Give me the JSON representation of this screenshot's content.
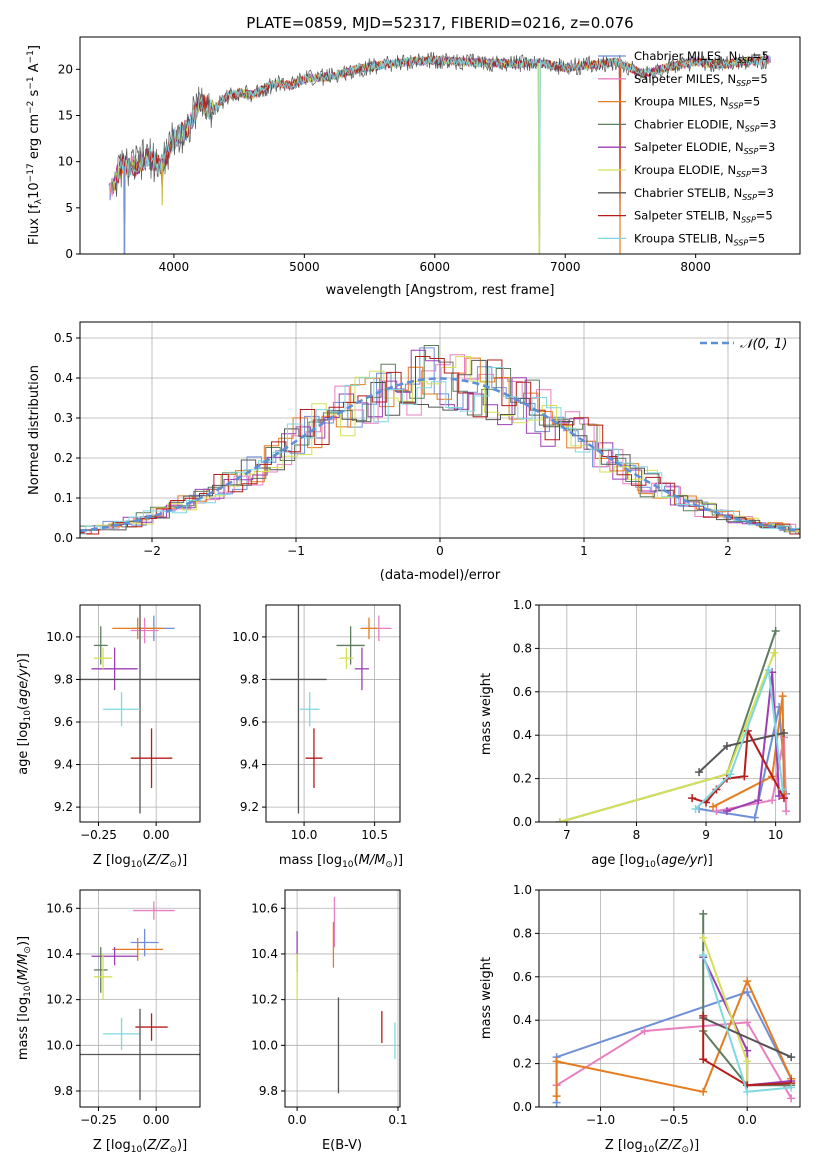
{
  "chart_data": [
    {
      "type": "line",
      "title": "PLATE=0859, MJD=52317, FIBERID=0216, z=0.076",
      "xlabel": "wavelength [Angstrom, rest frame]",
      "ylabel": "Flux [f_λ 10^-17 erg cm^-2 s^-1 A^-1]",
      "xlim": [
        3280,
        8800
      ],
      "ylim": [
        0,
        23.5
      ],
      "xticks": [
        "4000",
        "5000",
        "6000",
        "7000",
        "8000"
      ],
      "yticks": [
        "0",
        "5",
        "10",
        "15",
        "20"
      ],
      "legend_position": "upper-right",
      "series": [
        {
          "name": "Chabrier MILES, N_SSP=5",
          "color": "#6f8fd8"
        },
        {
          "name": "Salpeter MILES, N_SSP=5",
          "color": "#e87fc1"
        },
        {
          "name": "Kroupa MILES, N_SSP=5",
          "color": "#e57c20"
        },
        {
          "name": "Chabrier ELODIE, N_SSP=3",
          "color": "#5e7d5e"
        },
        {
          "name": "Salpeter ELODIE, N_SSP=3",
          "color": "#9b3fb5"
        },
        {
          "name": "Kroupa ELODIE, N_SSP=3",
          "color": "#d4e157"
        },
        {
          "name": "Chabrier STELIB, N_SSP=3",
          "color": "#555555"
        },
        {
          "name": "Salpeter STELIB, N_SSP=5",
          "color": "#b71c1c"
        },
        {
          "name": "Kroupa STELIB, N_SSP=5",
          "color": "#7fd8e0"
        }
      ],
      "continuum": {
        "x": [
          3500,
          3600,
          3700,
          3800,
          3900,
          4000,
          4100,
          4200,
          4300,
          4400,
          4500,
          4600,
          4700,
          4800,
          4900,
          5000,
          5200,
          5400,
          5600,
          5800,
          6000,
          6200,
          6400,
          6600,
          6800,
          7000,
          7200,
          7400,
          7600,
          7800,
          8000,
          8200,
          8400,
          8600
        ],
        "y": [
          6.5,
          9.5,
          9.5,
          10.5,
          9.5,
          12.5,
          13.5,
          16.5,
          15.5,
          17,
          17.5,
          17.2,
          18,
          18.5,
          18.2,
          19,
          19.2,
          20,
          20.5,
          20.8,
          21,
          20.8,
          20.7,
          20.6,
          20.7,
          20.2,
          20.5,
          20.8,
          19.5,
          20.3,
          20.8,
          20.5,
          20.9,
          21
        ]
      },
      "drops": [
        {
          "x": 3620,
          "y": 0
        },
        {
          "x": 3910,
          "y": 5.3
        },
        {
          "x": 6800,
          "y": 0
        },
        {
          "x": 7420,
          "y": 0
        }
      ]
    },
    {
      "type": "line",
      "title": "",
      "xlabel": "(data-model)/error",
      "ylabel": "Normed distribution",
      "xlim": [
        -2.5,
        2.5
      ],
      "ylim": [
        0,
        0.54
      ],
      "xticks": [
        "−2",
        "−1",
        "0",
        "1",
        "2"
      ],
      "yticks": [
        "0.0",
        "0.1",
        "0.2",
        "0.3",
        "0.4",
        "0.5"
      ],
      "legend_position": "upper-right",
      "reference_label": "N(0,1)",
      "reference_color": "#5b8fd6",
      "bin_width": 0.1,
      "histogram_colors": [
        "#6f8fd8",
        "#e87fc1",
        "#e57c20",
        "#5e7d5e",
        "#9b3fb5",
        "#d4e157",
        "#555555",
        "#b71c1c",
        "#7fd8e0"
      ]
    },
    {
      "type": "scatter",
      "xlabel": "Z [log10(Z/Z⊙)]",
      "ylabel": "age  [log10(age/yr)]",
      "xlim": [
        -0.33,
        0.19
      ],
      "ylim": [
        9.13,
        10.15
      ],
      "xticks": [
        "−0.25",
        "0.00"
      ],
      "yticks": [
        "9.2",
        "9.4",
        "9.6",
        "9.8",
        "10.0"
      ],
      "points": [
        {
          "x": -0.01,
          "y": 10.04,
          "xe": 0.09,
          "ye": 0.06,
          "color": "#6f8fd8"
        },
        {
          "x": -0.08,
          "y": 10.04,
          "xe": 0.11,
          "ye": 0.05,
          "color": "#e57c20"
        },
        {
          "x": -0.05,
          "y": 10.03,
          "xe": 0.06,
          "ye": 0.06,
          "color": "#e87fc1"
        },
        {
          "x": -0.24,
          "y": 9.96,
          "xe": 0.03,
          "ye": 0.09,
          "color": "#5e7d5e"
        },
        {
          "x": -0.18,
          "y": 9.85,
          "xe": 0.1,
          "ye": 0.1,
          "color": "#9b3fb5"
        },
        {
          "x": -0.23,
          "y": 9.9,
          "xe": 0.04,
          "ye": 0.05,
          "color": "#d4e157"
        },
        {
          "x": -0.07,
          "y": 9.8,
          "xe": 0.26,
          "ye": 0.63,
          "color": "#555555"
        },
        {
          "x": -0.15,
          "y": 9.66,
          "xe": 0.08,
          "ye": 0.08,
          "color": "#7fd8e0"
        },
        {
          "x": -0.02,
          "y": 9.43,
          "xe": 0.09,
          "ye": 0.14,
          "color": "#b71c1c"
        }
      ]
    },
    {
      "type": "scatter",
      "xlabel": "mass [log10(M/M⊙)]",
      "ylabel": "",
      "xlim": [
        9.73,
        10.68
      ],
      "ylim": [
        9.13,
        10.15
      ],
      "xticks": [
        "10.0",
        "10.5"
      ],
      "yticks": [
        "9.2",
        "9.4",
        "9.6",
        "9.8",
        "10.0"
      ],
      "points": [
        {
          "x": 10.53,
          "y": 10.04,
          "xe": 0.09,
          "ye": 0.06,
          "color": "#e87fc1"
        },
        {
          "x": 10.46,
          "y": 10.04,
          "xe": 0.06,
          "ye": 0.05,
          "color": "#e57c20"
        },
        {
          "x": 10.33,
          "y": 9.96,
          "xe": 0.1,
          "ye": 0.09,
          "color": "#5e7d5e"
        },
        {
          "x": 10.41,
          "y": 9.85,
          "xe": 0.05,
          "ye": 0.1,
          "color": "#9b3fb5"
        },
        {
          "x": 10.3,
          "y": 9.9,
          "xe": 0.05,
          "ye": 0.05,
          "color": "#d4e157"
        },
        {
          "x": 9.96,
          "y": 9.8,
          "xe": 0.2,
          "ye": 0.63,
          "color": "#555555"
        },
        {
          "x": 10.04,
          "y": 9.66,
          "xe": 0.07,
          "ye": 0.08,
          "color": "#7fd8e0"
        },
        {
          "x": 10.07,
          "y": 9.43,
          "xe": 0.06,
          "ye": 0.14,
          "color": "#b71c1c"
        }
      ]
    },
    {
      "type": "line",
      "xlabel": "age  [log10(age/yr)]",
      "ylabel": "mass weight",
      "xlim": [
        6.6,
        10.35
      ],
      "ylim": [
        0,
        1
      ],
      "xticks": [
        "7",
        "8",
        "9",
        "10"
      ],
      "yticks": [
        "0.0",
        "0.2",
        "0.4",
        "0.6",
        "0.8",
        "1.0"
      ],
      "series": [
        {
          "color": "#6f8fd8",
          "points": [
            [
              8.9,
              0.06
            ],
            [
              9.7,
              0.02
            ],
            [
              10.05,
              0.53
            ],
            [
              10.15,
              0.13
            ]
          ]
        },
        {
          "color": "#e87fc1",
          "points": [
            [
              9.15,
              0.05
            ],
            [
              9.95,
              0.1
            ],
            [
              10.12,
              0.39
            ],
            [
              10.15,
              0.05
            ]
          ]
        },
        {
          "color": "#e57c20",
          "points": [
            [
              9.1,
              0.07
            ],
            [
              9.95,
              0.21
            ],
            [
              10.1,
              0.58
            ],
            [
              10.12,
              0.13
            ]
          ]
        },
        {
          "color": "#5e7d5e",
          "points": [
            [
              6.9,
              0
            ],
            [
              9.3,
              0.22
            ],
            [
              10,
              0.88
            ]
          ]
        },
        {
          "color": "#9b3fb5",
          "points": [
            [
              9.3,
              0.05
            ],
            [
              9.75,
              0.1
            ],
            [
              9.95,
              0.69
            ],
            [
              10.05,
              0.12
            ]
          ]
        },
        {
          "color": "#d4e157",
          "points": [
            [
              6.9,
              0
            ],
            [
              9.3,
              0.22
            ],
            [
              9.98,
              0.78
            ]
          ]
        },
        {
          "color": "#555555",
          "points": [
            [
              8.9,
              0.23
            ],
            [
              9.3,
              0.35
            ],
            [
              10.12,
              0.41
            ]
          ]
        },
        {
          "color": "#b71c1c",
          "points": [
            [
              8.8,
              0.11
            ],
            [
              9.0,
              0.09
            ],
            [
              9.15,
              0.15
            ],
            [
              9.3,
              0.2
            ],
            [
              9.55,
              0.21
            ],
            [
              9.6,
              0.42
            ],
            [
              10.12,
              0.11
            ]
          ]
        },
        {
          "color": "#7fd8e0",
          "points": [
            [
              8.85,
              0.06
            ],
            [
              9.35,
              0.22
            ],
            [
              9.9,
              0.7
            ],
            [
              10.1,
              0.15
            ]
          ]
        }
      ]
    },
    {
      "type": "scatter",
      "xlabel": "Z [log10(Z/Z⊙)]",
      "ylabel": "mass [log10(M/M⊙)]",
      "xlim": [
        -0.33,
        0.19
      ],
      "ylim": [
        9.73,
        10.68
      ],
      "xticks": [
        "−0.25",
        "0.00"
      ],
      "yticks": [
        "9.8",
        "10.0",
        "10.2",
        "10.4",
        "10.6"
      ],
      "points": [
        {
          "x": -0.01,
          "y": 10.59,
          "xe": 0.09,
          "ye": 0.04,
          "color": "#e87fc1"
        },
        {
          "x": -0.05,
          "y": 10.45,
          "xe": 0.06,
          "ye": 0.06,
          "color": "#6f8fd8"
        },
        {
          "x": -0.08,
          "y": 10.42,
          "xe": 0.11,
          "ye": 0.05,
          "color": "#e57c20"
        },
        {
          "x": -0.18,
          "y": 10.39,
          "xe": 0.1,
          "ye": 0.04,
          "color": "#9b3fb5"
        },
        {
          "x": -0.24,
          "y": 10.33,
          "xe": 0.03,
          "ye": 0.1,
          "color": "#5e7d5e"
        },
        {
          "x": -0.23,
          "y": 10.3,
          "xe": 0.04,
          "ye": 0.1,
          "color": "#d4e157"
        },
        {
          "x": -0.02,
          "y": 10.08,
          "xe": 0.07,
          "ye": 0.06,
          "color": "#b71c1c"
        },
        {
          "x": -0.15,
          "y": 10.05,
          "xe": 0.08,
          "ye": 0.07,
          "color": "#7fd8e0"
        },
        {
          "x": -0.07,
          "y": 9.96,
          "xe": 0.26,
          "ye": 0.2,
          "color": "#555555"
        }
      ]
    },
    {
      "type": "scatter",
      "xlabel": "E(B-V)",
      "ylabel": "",
      "xlim": [
        -0.012,
        0.102
      ],
      "ylim": [
        9.73,
        10.68
      ],
      "xticks": [
        "0.0",
        "0.1"
      ],
      "yticks": [
        "9.8",
        "10.0",
        "10.2",
        "10.4",
        "10.6"
      ],
      "points": [
        {
          "x": 0.0,
          "y": 10.41,
          "xe": 0,
          "ye": 0.09,
          "color": "#9b3fb5"
        },
        {
          "x": 0.0,
          "y": 10.3,
          "xe": 0,
          "ye": 0.1,
          "color": "#d4e157"
        },
        {
          "x": 0.037,
          "y": 10.54,
          "xe": 0,
          "ye": 0.11,
          "color": "#e87fc1"
        },
        {
          "x": 0.036,
          "y": 10.44,
          "xe": 0,
          "ye": 0.1,
          "color": "#e57c20"
        },
        {
          "x": 0.041,
          "y": 10.0,
          "xe": 0,
          "ye": 0.21,
          "color": "#555555"
        },
        {
          "x": 0.084,
          "y": 10.08,
          "xe": 0,
          "ye": 0.07,
          "color": "#b71c1c"
        },
        {
          "x": 0.097,
          "y": 10.02,
          "xe": 0,
          "ye": 0.08,
          "color": "#7fd8e0"
        }
      ]
    },
    {
      "type": "line",
      "xlabel": "Z [log10(Z/Z⊙)]",
      "ylabel": "mass weight",
      "xlim": [
        -1.42,
        0.36
      ],
      "ylim": [
        0,
        1
      ],
      "xticks": [
        "−1.0",
        "−0.5",
        "0.0"
      ],
      "yticks": [
        "0.0",
        "0.2",
        "0.4",
        "0.6",
        "0.8",
        "1.0"
      ],
      "series": [
        {
          "color": "#6f8fd8",
          "points": [
            [
              -1.3,
              0.02
            ],
            [
              -1.3,
              0.23
            ],
            [
              0,
              0.53
            ],
            [
              0.3,
              0.13
            ]
          ]
        },
        {
          "color": "#e87fc1",
          "points": [
            [
              -1.3,
              0.1
            ],
            [
              -0.7,
              0.35
            ],
            [
              0,
              0.39
            ],
            [
              0.3,
              0.04
            ]
          ]
        },
        {
          "color": "#e57c20",
          "points": [
            [
              -1.3,
              0.05
            ],
            [
              -1.3,
              0.21
            ],
            [
              -0.3,
              0.07
            ],
            [
              0,
              0.58
            ],
            [
              0.3,
              0.13
            ]
          ]
        },
        {
          "color": "#5e7d5e",
          "points": [
            [
              -0.3,
              0.89
            ],
            [
              -0.3,
              0.35
            ],
            [
              0,
              0.1
            ],
            [
              0.3,
              0.1
            ]
          ]
        },
        {
          "color": "#9b3fb5",
          "points": [
            [
              -0.3,
              0.69
            ],
            [
              0,
              0.26
            ],
            [
              0,
              0.1
            ],
            [
              0.3,
              0.12
            ]
          ]
        },
        {
          "color": "#d4e157",
          "points": [
            [
              -0.3,
              0.78
            ],
            [
              0,
              0.21
            ],
            [
              0,
              0.1
            ]
          ]
        },
        {
          "color": "#555555",
          "points": [
            [
              -0.3,
              0.41
            ],
            [
              0.3,
              0.23
            ]
          ]
        },
        {
          "color": "#b71c1c",
          "points": [
            [
              -0.3,
              0.42
            ],
            [
              -0.3,
              0.22
            ],
            [
              0,
              0.1
            ],
            [
              0.3,
              0.11
            ]
          ]
        },
        {
          "color": "#7fd8e0",
          "points": [
            [
              -0.3,
              0.7
            ],
            [
              0,
              0.07
            ],
            [
              0.3,
              0.09
            ]
          ]
        }
      ]
    }
  ]
}
